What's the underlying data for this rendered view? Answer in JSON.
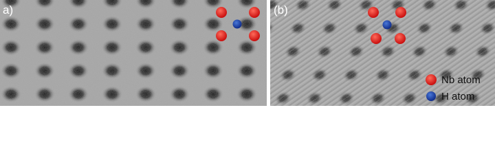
{
  "panels": [
    {
      "label": "a)"
    },
    {
      "label": "(b)"
    }
  ],
  "legend": [
    {
      "label": "Nb atom"
    },
    {
      "label": "H atom"
    }
  ]
}
